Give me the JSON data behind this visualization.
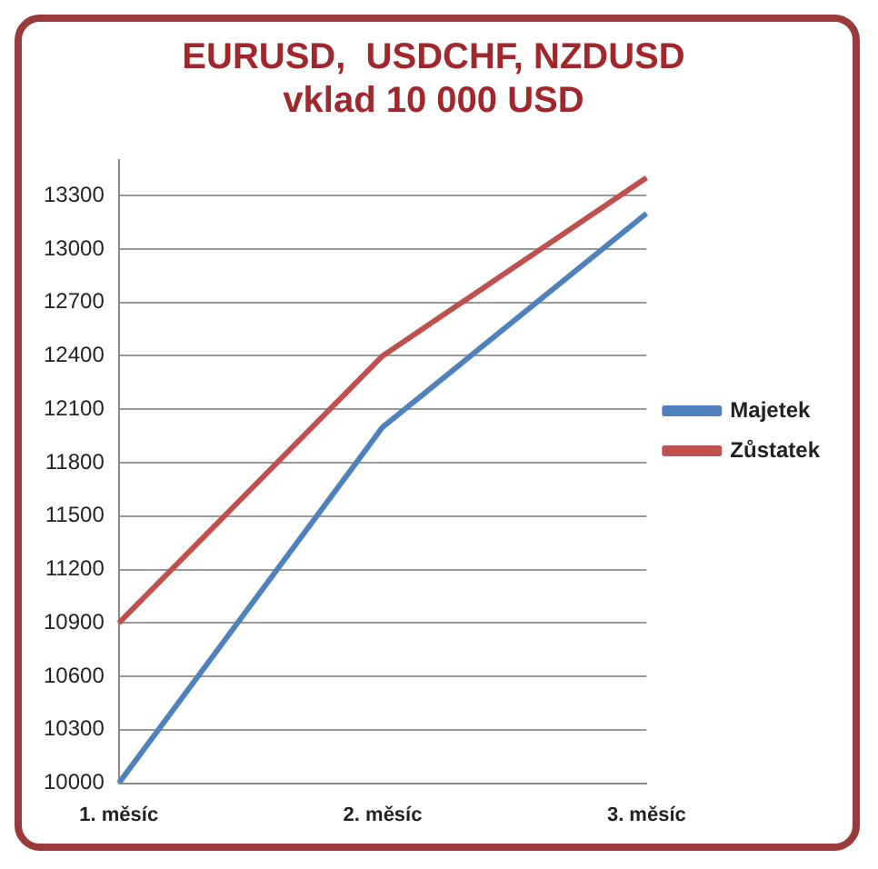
{
  "chart_data": {
    "type": "line",
    "title": [
      "EURUSD,  USDCHF, NZDUSD",
      "vklad 10 000 USD"
    ],
    "categories": [
      "1. měsíc",
      "2. měsíc",
      "3. měsíc"
    ],
    "series": [
      {
        "name": "Majetek",
        "color": "#4f81bd",
        "values": [
          10000,
          12000,
          13200
        ]
      },
      {
        "name": "Zůstatek",
        "color": "#c0504d",
        "values": [
          10900,
          12400,
          13400
        ]
      }
    ],
    "ylim": [
      10000,
      13500
    ],
    "yticks": [
      10000,
      10300,
      10600,
      10900,
      11200,
      11500,
      11800,
      12100,
      12400,
      12700,
      13000,
      13300
    ],
    "grid": "y",
    "legend": "right",
    "marker": "none",
    "line_style": "solid"
  }
}
